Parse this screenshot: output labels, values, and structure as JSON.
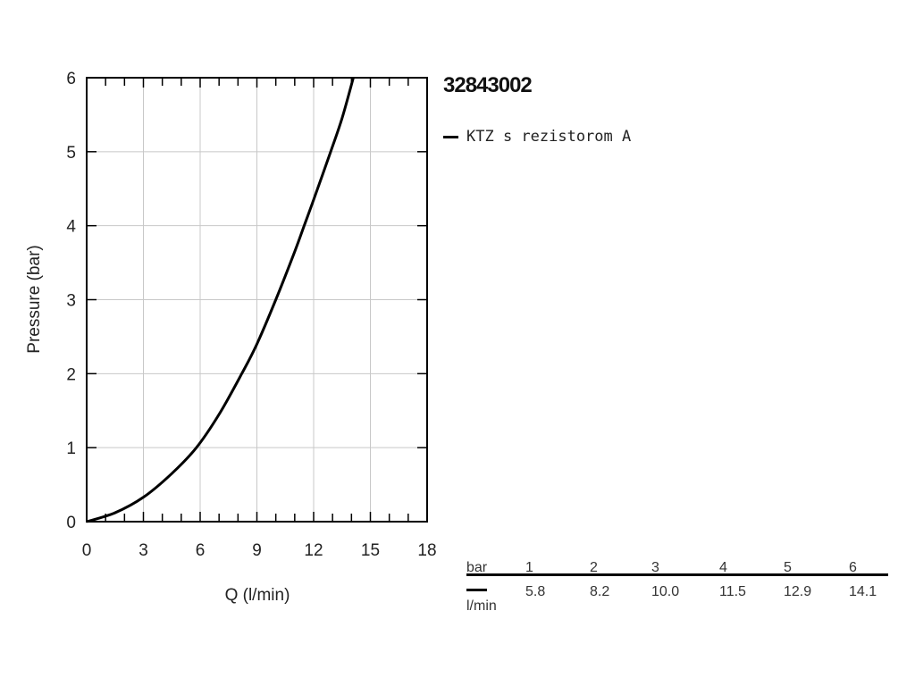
{
  "chart_data": {
    "type": "line",
    "title": "32843002",
    "xlabel": "Q (l/min)",
    "ylabel": "Pressure (bar)",
    "xlim": [
      0,
      18
    ],
    "ylim": [
      0,
      6
    ],
    "xticks": [
      "0",
      "3",
      "6",
      "9",
      "12",
      "15",
      "18"
    ],
    "yticks": [
      "0",
      "1",
      "2",
      "3",
      "4",
      "5",
      "6"
    ],
    "grid": true,
    "legend_position": "top-right",
    "series": [
      {
        "name": "KTZ s rezistorom A",
        "color": "#000000",
        "x": [
          0,
          1.5,
          3,
          4.5,
          5.8,
          7,
          8.2,
          9,
          10,
          11,
          11.5,
          12,
          12.9,
          13.5,
          14.1
        ],
        "y": [
          0,
          0.12,
          0.33,
          0.65,
          1,
          1.45,
          2,
          2.4,
          3,
          3.65,
          4,
          4.35,
          5,
          5.45,
          6
        ]
      }
    ]
  },
  "table": {
    "row1_label": "bar",
    "row2_label": "l/min",
    "bar": [
      "1",
      "2",
      "3",
      "4",
      "5",
      "6"
    ],
    "lmin": [
      "5.8",
      "8.2",
      "10.0",
      "11.5",
      "12.9",
      "14.1"
    ]
  }
}
